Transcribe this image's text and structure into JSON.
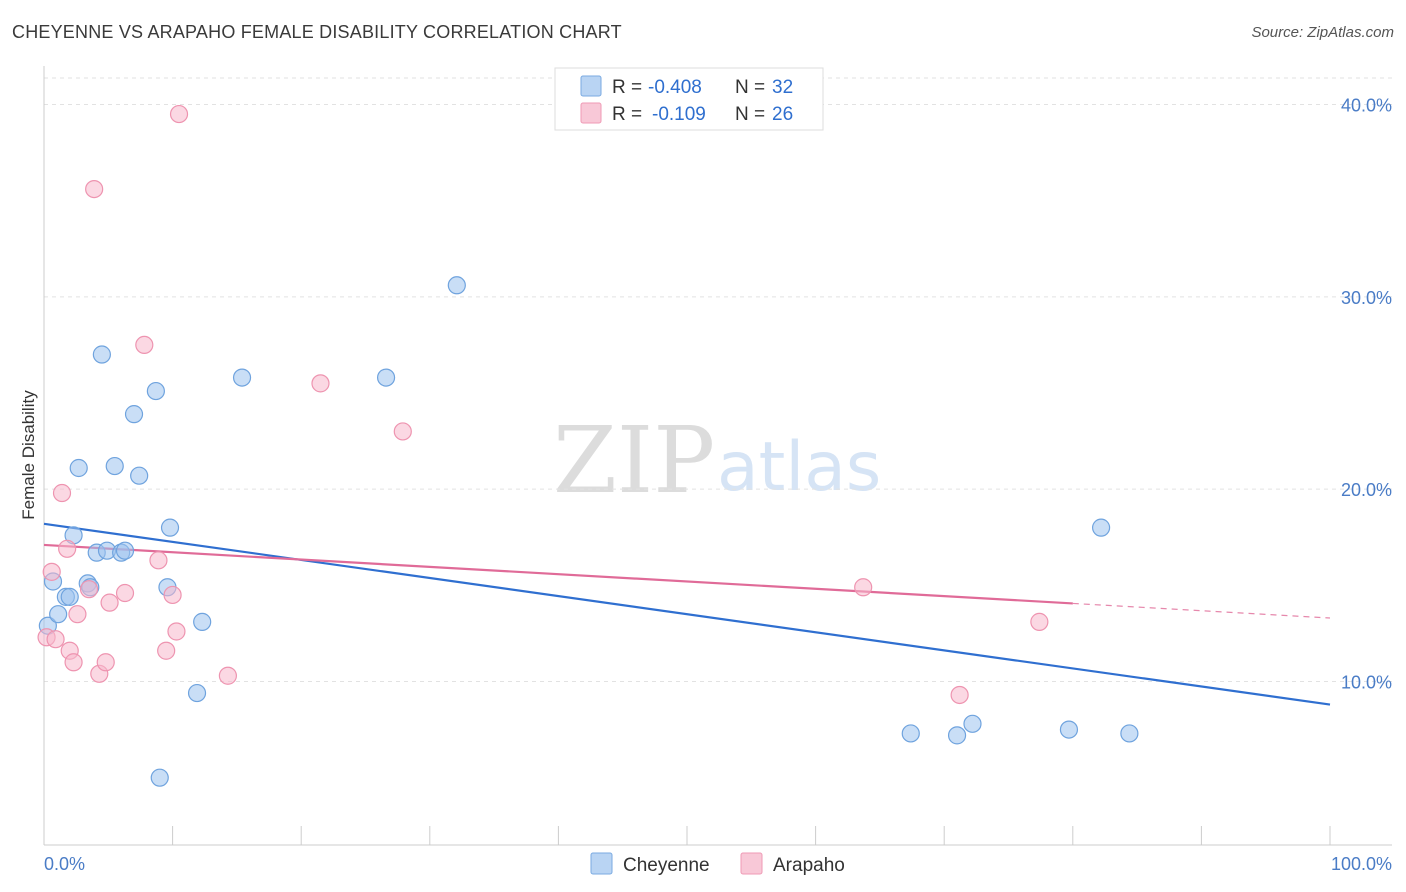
{
  "header": {
    "title": "CHEYENNE VS ARAPAHO FEMALE DISABILITY CORRELATION CHART",
    "source": "Source: ZipAtlas.com"
  },
  "watermark": {
    "zip": "ZIP",
    "atlas": "atlas"
  },
  "chart_data": {
    "type": "scatter",
    "title": "CHEYENNE VS ARAPAHO FEMALE DISABILITY CORRELATION CHART",
    "xlabel": "",
    "ylabel": "Female Disability",
    "xlim": [
      0,
      100
    ],
    "ylim": [
      1.5,
      42
    ],
    "x_tick_labels": {
      "min": "0.0%",
      "max": "100.0%"
    },
    "y_ticks": [
      10,
      20,
      30,
      40
    ],
    "y_tick_labels": [
      "10.0%",
      "20.0%",
      "30.0%",
      "40.0%"
    ],
    "grid": true,
    "legend": {
      "position": "top-center",
      "entries": [
        {
          "r_label": "R =",
          "r_value": "-0.408",
          "n_label": "N =",
          "n_value": "32"
        },
        {
          "r_label": "R =",
          "r_value": "-0.109",
          "n_label": "N =",
          "n_value": "26"
        }
      ]
    },
    "series": [
      {
        "name": "Cheyenne",
        "color": "#9dc3ee",
        "stroke": "#6fa3de",
        "line_color": "#2f6fd0",
        "trend": {
          "x": [
            0,
            100
          ],
          "y": [
            18.2,
            8.8
          ],
          "solid_until": 100
        },
        "points": [
          [
            0.3,
            12.9
          ],
          [
            0.7,
            15.2
          ],
          [
            1.1,
            13.5
          ],
          [
            1.7,
            14.4
          ],
          [
            2.0,
            14.4
          ],
          [
            2.3,
            17.6
          ],
          [
            2.7,
            21.1
          ],
          [
            3.4,
            15.1
          ],
          [
            3.6,
            14.9
          ],
          [
            4.1,
            16.7
          ],
          [
            4.5,
            27.0
          ],
          [
            4.9,
            16.8
          ],
          [
            5.5,
            21.2
          ],
          [
            6.0,
            16.7
          ],
          [
            6.3,
            16.8
          ],
          [
            7.0,
            23.9
          ],
          [
            7.4,
            20.7
          ],
          [
            8.7,
            25.1
          ],
          [
            9.0,
            5.0
          ],
          [
            9.6,
            14.9
          ],
          [
            9.8,
            18.0
          ],
          [
            11.9,
            9.4
          ],
          [
            12.3,
            13.1
          ],
          [
            15.4,
            25.8
          ],
          [
            26.6,
            25.8
          ],
          [
            32.1,
            30.6
          ],
          [
            67.4,
            7.3
          ],
          [
            71.0,
            7.2
          ],
          [
            72.2,
            7.8
          ],
          [
            79.7,
            7.5
          ],
          [
            82.2,
            18.0
          ],
          [
            84.4,
            7.3
          ]
        ]
      },
      {
        "name": "Arapaho",
        "color": "#f7b8cc",
        "stroke": "#ee94b0",
        "line_color": "#e06b98",
        "trend": {
          "x": [
            0,
            100
          ],
          "y": [
            17.1,
            13.3
          ],
          "solid_until": 80
        },
        "points": [
          [
            0.2,
            12.3
          ],
          [
            0.6,
            15.7
          ],
          [
            0.9,
            12.2
          ],
          [
            1.4,
            19.8
          ],
          [
            1.8,
            16.9
          ],
          [
            2.0,
            11.6
          ],
          [
            2.3,
            11.0
          ],
          [
            2.6,
            13.5
          ],
          [
            3.5,
            14.8
          ],
          [
            3.9,
            35.6
          ],
          [
            4.3,
            10.4
          ],
          [
            4.8,
            11.0
          ],
          [
            5.1,
            14.1
          ],
          [
            6.3,
            14.6
          ],
          [
            7.8,
            27.5
          ],
          [
            8.9,
            16.3
          ],
          [
            9.5,
            11.6
          ],
          [
            10.0,
            14.5
          ],
          [
            10.3,
            12.6
          ],
          [
            10.5,
            39.5
          ],
          [
            14.3,
            10.3
          ],
          [
            21.5,
            25.5
          ],
          [
            27.9,
            23.0
          ],
          [
            63.7,
            14.9
          ],
          [
            71.2,
            9.3
          ],
          [
            77.4,
            13.1
          ]
        ]
      }
    ]
  }
}
